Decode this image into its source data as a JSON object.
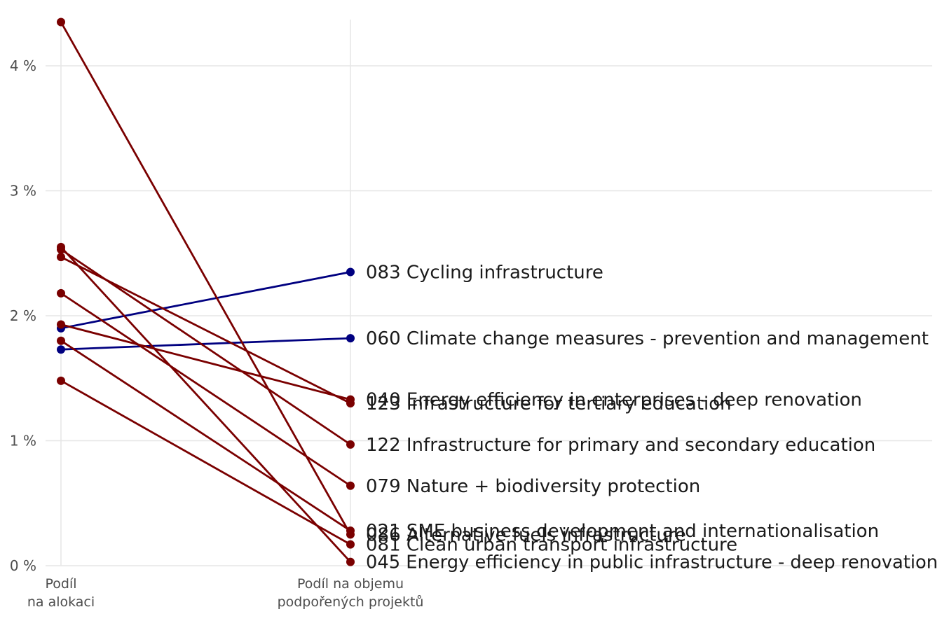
{
  "chart_data": {
    "type": "line",
    "title": "",
    "xlabel": "",
    "ylabel": "",
    "categories": [
      [
        "Podíl",
        "na alokaci"
      ],
      [
        "Podíl na objemu",
        "podpořených projektů"
      ]
    ],
    "ylim": [
      0,
      4.35
    ],
    "yticks": [
      0,
      1,
      2,
      3,
      4
    ],
    "ytick_labels": [
      "0 %",
      "1 %",
      "2 %",
      "3 %",
      "4 %"
    ],
    "grid": true,
    "legend": "none",
    "colors": {
      "increase": "#000080",
      "decrease": "#7a0000",
      "grid": "#e6e6e6"
    },
    "series": [
      {
        "name": "083 Cycling infrastructure",
        "values": [
          1.9,
          2.35
        ],
        "trend": "increase"
      },
      {
        "name": "060 Climate change measures - prevention and management",
        "values": [
          1.73,
          1.82
        ],
        "trend": "increase"
      },
      {
        "name": "040 Energy efficiency in enterprises - deep renovation",
        "values": [
          1.93,
          1.33
        ],
        "trend": "decrease"
      },
      {
        "name": "123 Infrastructure for tertiary education",
        "values": [
          2.47,
          1.3
        ],
        "trend": "decrease"
      },
      {
        "name": "122 Infrastructure for primary and secondary education",
        "values": [
          2.53,
          0.97
        ],
        "trend": "decrease"
      },
      {
        "name": "079 Nature + biodiversity protection",
        "values": [
          2.18,
          0.64
        ],
        "trend": "decrease"
      },
      {
        "name": "021 SME business development and internationalisation",
        "values": [
          1.8,
          0.28
        ],
        "trend": "decrease"
      },
      {
        "name": "086 Alternative fuels infrastructure",
        "values": [
          4.35,
          0.25
        ],
        "trend": "decrease"
      },
      {
        "name": "081 Clean urban transport infrastructure",
        "values": [
          1.48,
          0.17
        ],
        "trend": "decrease"
      },
      {
        "name": "045 Energy efficiency in public infrastructure - deep renovation",
        "values": [
          2.55,
          0.03
        ],
        "trend": "decrease"
      }
    ]
  }
}
